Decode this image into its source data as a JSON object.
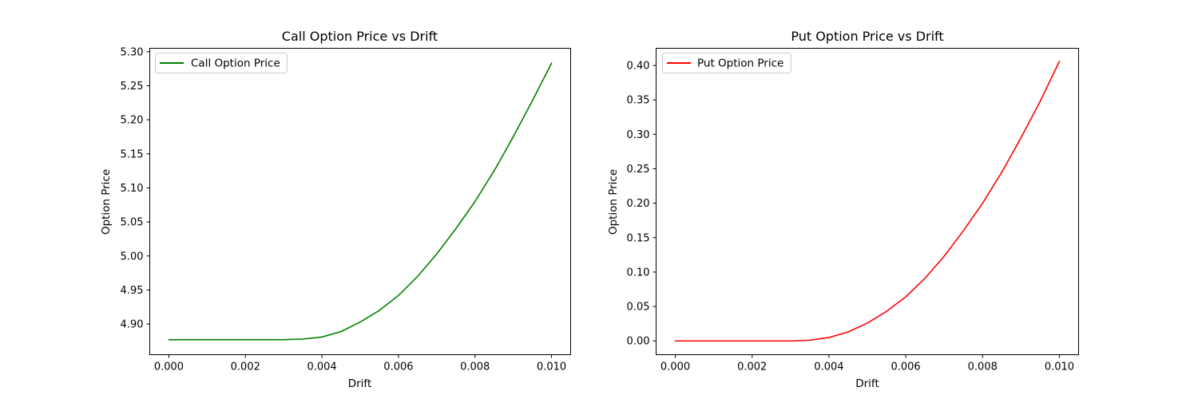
{
  "chart_data": [
    {
      "type": "line",
      "title": "Call Option Price vs Drift",
      "xlabel": "Drift",
      "ylabel": "Option Price",
      "xlim": [
        -0.0005,
        0.0105
      ],
      "ylim": [
        4.855,
        5.305
      ],
      "xticks": [
        0.0,
        0.002,
        0.004,
        0.006,
        0.008,
        0.01
      ],
      "xtick_labels": [
        "0.000",
        "0.002",
        "0.004",
        "0.006",
        "0.008",
        "0.010"
      ],
      "yticks": [
        4.9,
        4.95,
        5.0,
        5.05,
        5.1,
        5.15,
        5.2,
        5.25,
        5.3
      ],
      "ytick_labels": [
        "4.90",
        "4.95",
        "5.00",
        "5.05",
        "5.10",
        "5.15",
        "5.20",
        "5.25",
        "5.30"
      ],
      "grid": false,
      "legend_position": "upper-left",
      "series": [
        {
          "name": "Call Option Price",
          "color": "#008000",
          "x": [
            0.0,
            0.001,
            0.002,
            0.003,
            0.0035,
            0.004,
            0.0045,
            0.005,
            0.0055,
            0.006,
            0.0065,
            0.007,
            0.0075,
            0.008,
            0.0085,
            0.009,
            0.0095,
            0.01
          ],
          "y": [
            4.877,
            4.877,
            4.877,
            4.877,
            4.878,
            4.881,
            4.889,
            4.903,
            4.92,
            4.942,
            4.97,
            5.003,
            5.04,
            5.08,
            5.125,
            5.175,
            5.228,
            5.283
          ]
        }
      ]
    },
    {
      "type": "line",
      "title": "Put Option Price vs Drift",
      "xlabel": "Drift",
      "ylabel": "Option Price",
      "xlim": [
        -0.0005,
        0.0105
      ],
      "ylim": [
        -0.02,
        0.425
      ],
      "xticks": [
        0.0,
        0.002,
        0.004,
        0.006,
        0.008,
        0.01
      ],
      "xtick_labels": [
        "0.000",
        "0.002",
        "0.004",
        "0.006",
        "0.008",
        "0.010"
      ],
      "yticks": [
        0.0,
        0.05,
        0.1,
        0.15,
        0.2,
        0.25,
        0.3,
        0.35,
        0.4
      ],
      "ytick_labels": [
        "0.00",
        "0.05",
        "0.10",
        "0.15",
        "0.20",
        "0.25",
        "0.30",
        "0.35",
        "0.40"
      ],
      "grid": false,
      "legend_position": "upper-left",
      "series": [
        {
          "name": "Put Option Price",
          "color": "#ff0000",
          "x": [
            0.0,
            0.001,
            0.002,
            0.003,
            0.0035,
            0.004,
            0.0045,
            0.005,
            0.0055,
            0.006,
            0.0065,
            0.007,
            0.0075,
            0.008,
            0.0085,
            0.009,
            0.0095,
            0.01
          ],
          "y": [
            0.0,
            0.0,
            0.0,
            0.0,
            0.001,
            0.005,
            0.013,
            0.026,
            0.043,
            0.064,
            0.091,
            0.123,
            0.16,
            0.2,
            0.245,
            0.295,
            0.348,
            0.406
          ]
        }
      ]
    }
  ]
}
